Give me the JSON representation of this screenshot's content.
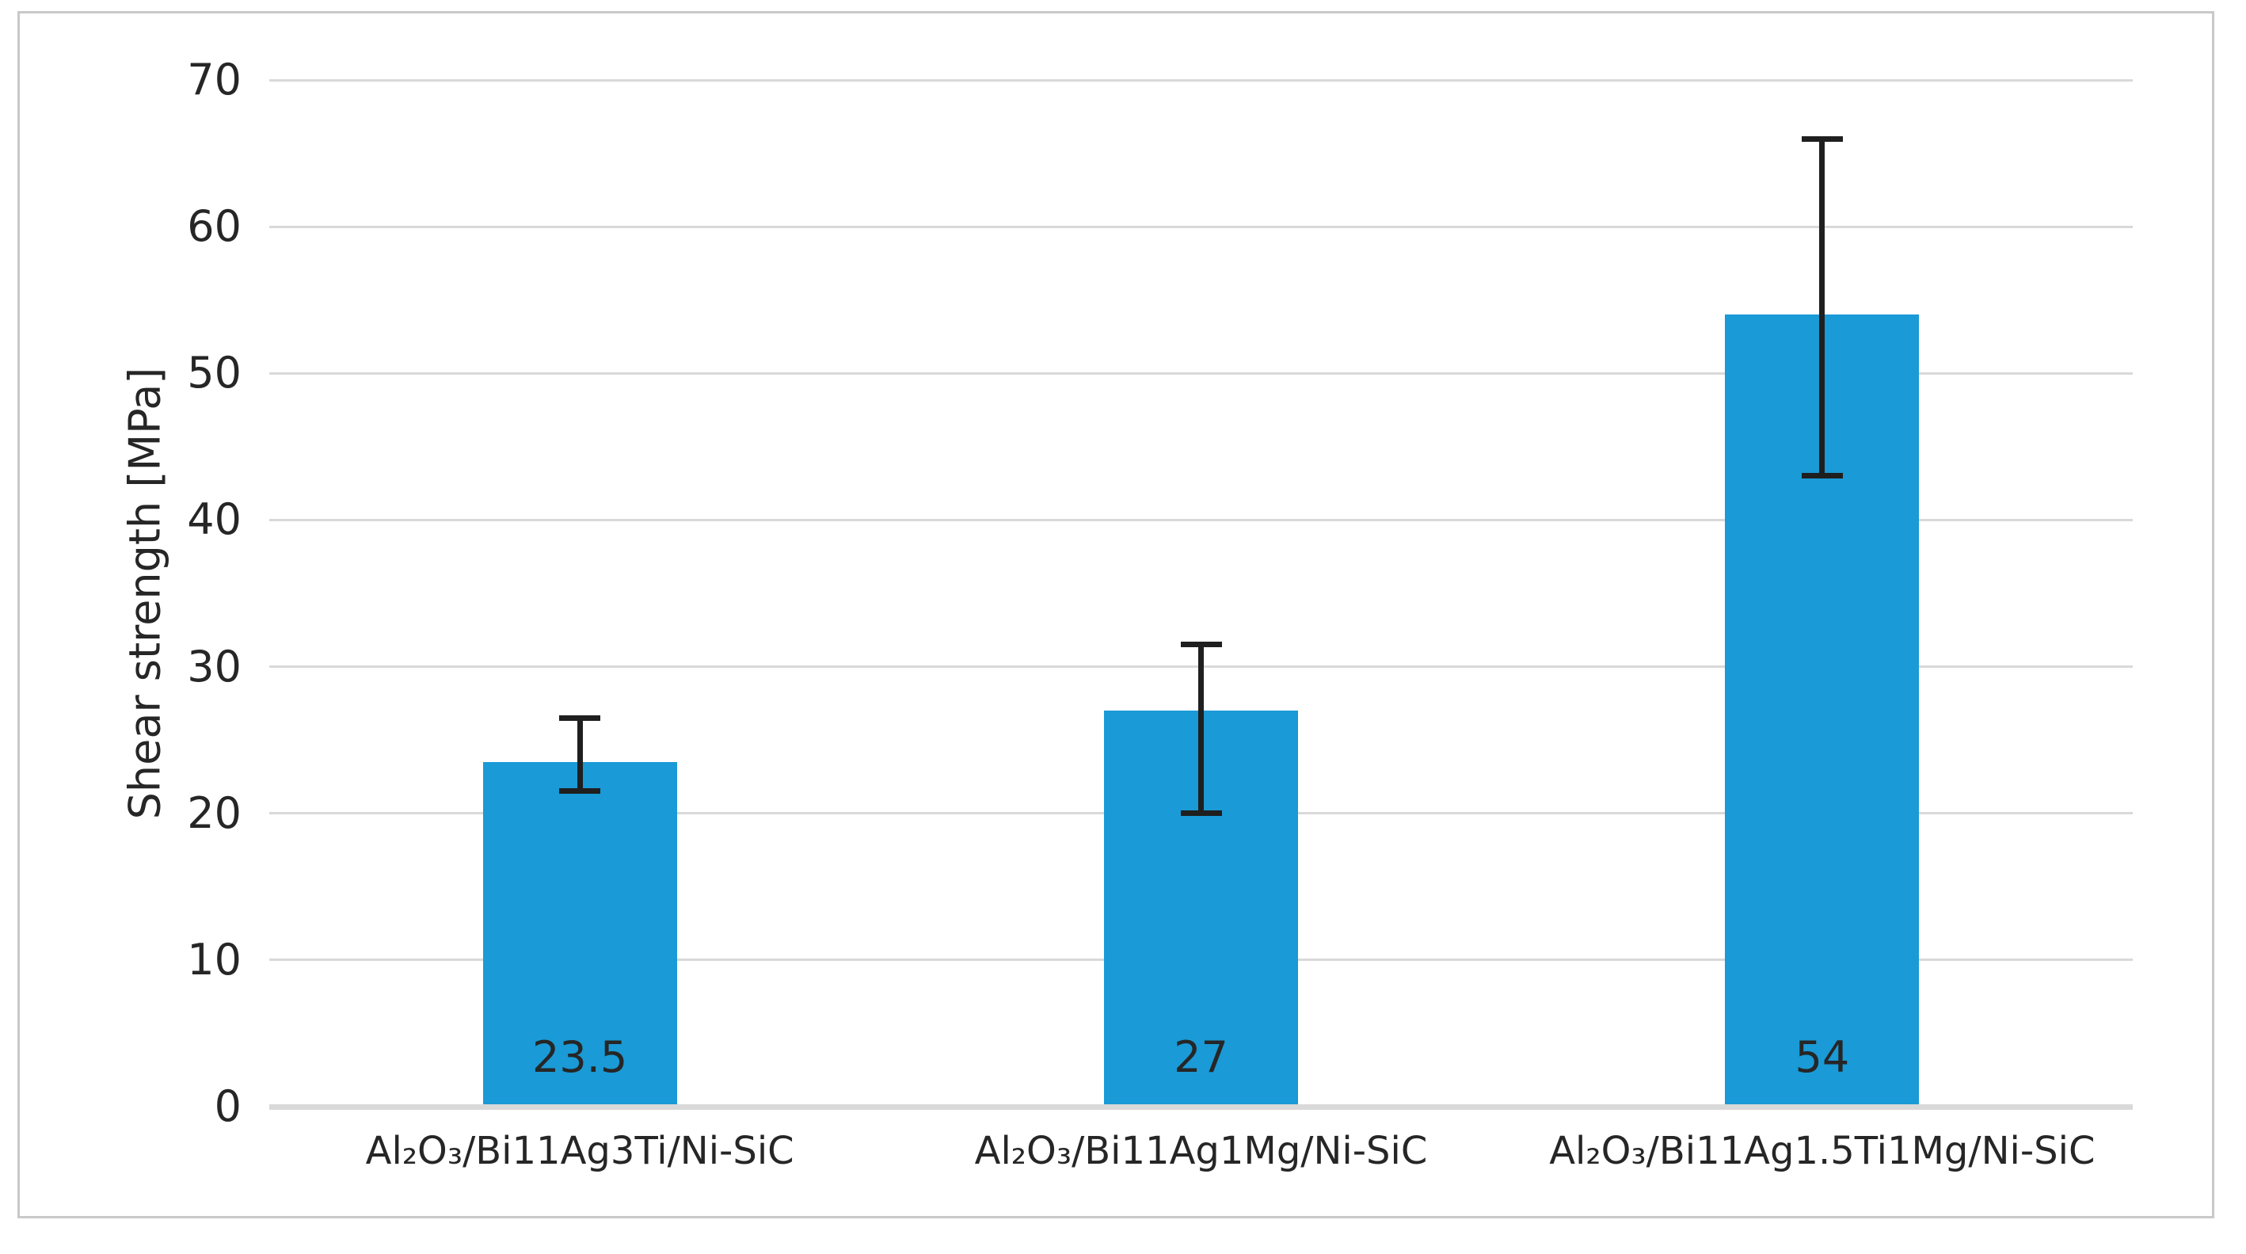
{
  "figure": {
    "background_color": "#ffffff",
    "border_color": "#c9c9c9"
  },
  "chart_data": {
    "type": "bar",
    "title": "",
    "xlabel": "",
    "ylabel": "Shear strength [MPa]",
    "ylim": [
      0,
      70
    ],
    "yticks": [
      0,
      10,
      20,
      30,
      40,
      50,
      60,
      70
    ],
    "grid": true,
    "legend_position": "none",
    "bar_color": "#1a9ad6",
    "gridline_color": "#d9d9d9",
    "error_bar_color": "#1f1f1f",
    "text_color": "#262626",
    "categories": [
      "Al₂O₃/Bi11Ag3Ti/Ni-SiC",
      "Al₂O₃/Bi11Ag1Mg/Ni-SiC",
      "Al₂O₃/Bi11Ag1.5Ti1Mg/Ni-SiC"
    ],
    "values": [
      23.5,
      27,
      54
    ],
    "data_labels": [
      "23.5",
      "27",
      "54"
    ],
    "error_bars_upper": [
      26.5,
      31.5,
      66
    ],
    "error_bars_lower": [
      21.5,
      20,
      43
    ]
  }
}
